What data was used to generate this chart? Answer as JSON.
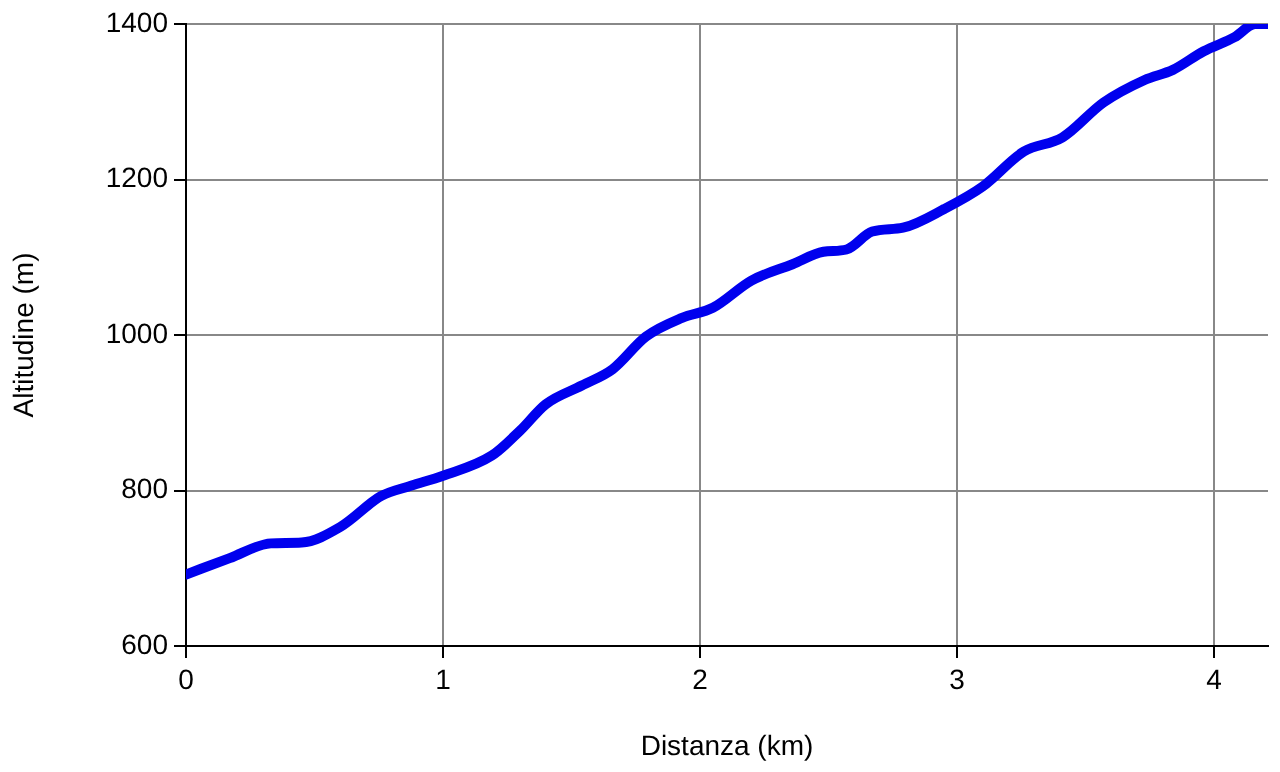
{
  "chart_data": {
    "type": "line",
    "xlabel": "Distanza (km)",
    "ylabel": "Altitudine (m)",
    "x": [
      0,
      0.17,
      0.33,
      0.45,
      0.6,
      0.76,
      0.875,
      1.0,
      1.19,
      1.3,
      1.4,
      1.54,
      1.66,
      1.79,
      1.93,
      2.05,
      2.2,
      2.36,
      2.48,
      2.57,
      2.67,
      2.79,
      2.95,
      3.1,
      3.26,
      3.41,
      3.57,
      3.73,
      3.84,
      3.96,
      4.08,
      4.16,
      4.21
    ],
    "series": [
      {
        "color": "#0000ee",
        "values": [
          692,
          713,
          732,
          733,
          753,
          793,
          806,
          819,
          845,
          877,
          911,
          935,
          956,
          998,
          1022,
          1035,
          1070,
          1091,
          1107,
          1110,
          1133,
          1138,
          1162,
          1191,
          1236,
          1254,
          1299,
          1328,
          1341,
          1365,
          1383,
          1400,
          1400
        ]
      }
    ],
    "xlim": [
      0,
      4.21
    ],
    "xticks": [
      0,
      1,
      2,
      3,
      4
    ],
    "ylim": [
      600,
      1400
    ],
    "yticks": [
      600,
      800,
      1000,
      1200,
      1400
    ],
    "grid": true,
    "legend": false,
    "marker": "none",
    "line_style": "solid"
  }
}
